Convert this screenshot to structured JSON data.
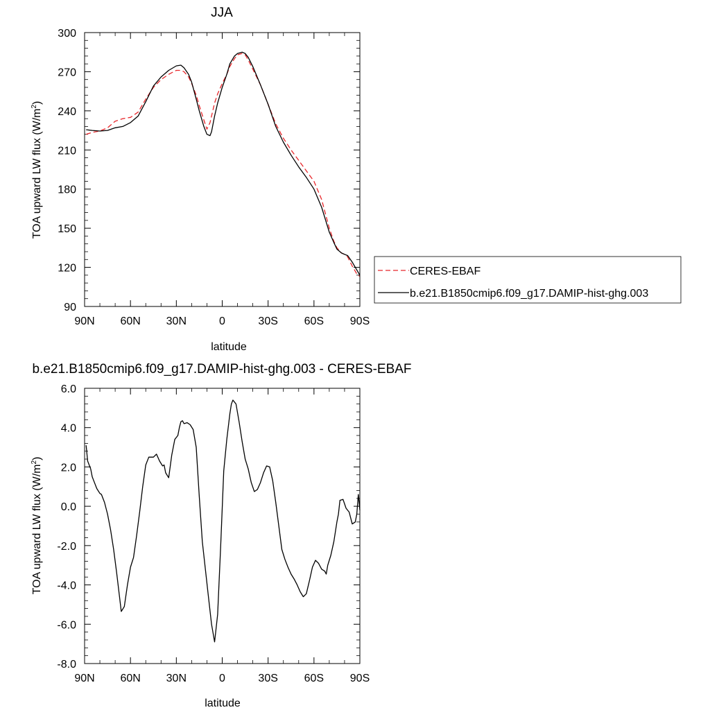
{
  "chart_data": [
    {
      "type": "line",
      "title": "JJA",
      "xlabel": "latitude",
      "ylabel": "TOA upward LW flux (W/m",
      "ylabel_sup": "2",
      "ylabel_close": ")",
      "xlim": [
        90,
        -90
      ],
      "ylim": [
        90,
        300
      ],
      "x_ticks": [
        {
          "value": 90,
          "label": "90N"
        },
        {
          "value": 60,
          "label": "60N"
        },
        {
          "value": 30,
          "label": "30N"
        },
        {
          "value": 0,
          "label": "0"
        },
        {
          "value": -30,
          "label": "30S"
        },
        {
          "value": -60,
          "label": "60S"
        },
        {
          "value": -90,
          "label": "90S"
        }
      ],
      "y_ticks": [
        {
          "value": 90,
          "label": "90"
        },
        {
          "value": 120,
          "label": "120"
        },
        {
          "value": 150,
          "label": "150"
        },
        {
          "value": 180,
          "label": "180"
        },
        {
          "value": 210,
          "label": "210"
        },
        {
          "value": 240,
          "label": "240"
        },
        {
          "value": 270,
          "label": "270"
        },
        {
          "value": 300,
          "label": "300"
        }
      ],
      "legend_position": "right",
      "series": [
        {
          "name": "CERES-EBAF",
          "color": "#e8262a",
          "dash": "dashed",
          "x": [
            89,
            85,
            80,
            75,
            70,
            65,
            60,
            55,
            50,
            45,
            40,
            35,
            30,
            27,
            25,
            22,
            20,
            17,
            15,
            12,
            10,
            8,
            7,
            5,
            3,
            0,
            -3,
            -5,
            -8,
            -10,
            -13,
            -15,
            -17,
            -20,
            -25,
            -30,
            -35,
            -40,
            -45,
            -50,
            -55,
            -60,
            -65,
            -70,
            -73,
            -75,
            -78,
            -80,
            -82,
            -85,
            -88,
            -90
          ],
          "y": [
            222,
            223.5,
            224.5,
            227,
            232,
            234,
            235,
            239,
            249,
            258,
            264,
            268,
            271,
            271,
            270,
            266,
            261,
            252,
            244,
            233,
            226,
            231,
            236,
            246,
            253,
            261,
            268,
            274,
            280,
            283,
            284,
            283,
            279,
            272,
            260,
            245,
            230,
            219,
            210,
            202,
            194,
            186,
            172,
            150,
            140,
            135,
            131,
            130,
            128,
            121,
            115,
            113
          ]
        },
        {
          "name": "b.e21.B1850cmip6.f09_g17.DAMIP-hist-ghg.003",
          "color": "#000000",
          "dash": "solid",
          "x": [
            89,
            85,
            80,
            75,
            70,
            65,
            60,
            55,
            50,
            45,
            40,
            35,
            30,
            27,
            25,
            22,
            20,
            17,
            15,
            12,
            10,
            8,
            7,
            5,
            3,
            0,
            -3,
            -5,
            -8,
            -10,
            -13,
            -15,
            -17,
            -20,
            -25,
            -30,
            -35,
            -40,
            -45,
            -50,
            -55,
            -60,
            -65,
            -70,
            -73,
            -75,
            -78,
            -80,
            -82,
            -85,
            -88,
            -90
          ],
          "y": [
            225.5,
            225,
            224.5,
            225,
            227,
            228,
            231,
            236,
            247,
            259,
            266,
            271,
            274.5,
            275,
            273,
            268,
            262,
            249,
            240,
            228,
            222,
            221,
            224,
            236,
            246,
            258,
            268,
            276,
            282,
            284,
            285,
            284,
            281,
            274,
            260,
            245,
            228,
            216,
            206,
            197,
            189,
            180,
            166,
            147,
            139,
            134,
            131,
            130,
            129,
            124,
            118,
            114
          ]
        }
      ]
    },
    {
      "type": "line",
      "title": "b.e21.B1850cmip6.f09_g17.DAMIP-hist-ghg.003 - CERES-EBAF",
      "xlabel": "latitude",
      "ylabel": "TOA upward LW flux (W/m",
      "ylabel_sup": "2",
      "ylabel_close": ")",
      "xlim": [
        90,
        -90
      ],
      "ylim": [
        -8,
        6
      ],
      "x_ticks": [
        {
          "value": 90,
          "label": "90N"
        },
        {
          "value": 60,
          "label": "60N"
        },
        {
          "value": 30,
          "label": "30N"
        },
        {
          "value": 0,
          "label": "0"
        },
        {
          "value": -30,
          "label": "30S"
        },
        {
          "value": -60,
          "label": "60S"
        },
        {
          "value": -90,
          "label": "90S"
        }
      ],
      "y_ticks": [
        {
          "value": -8,
          "label": "-8.0"
        },
        {
          "value": -6,
          "label": "-6.0"
        },
        {
          "value": -4,
          "label": "-4.0"
        },
        {
          "value": -2,
          "label": "-2.0"
        },
        {
          "value": 0,
          "label": "0.0"
        },
        {
          "value": 2,
          "label": "2.0"
        },
        {
          "value": 4,
          "label": "4.0"
        },
        {
          "value": 6,
          "label": "6.0"
        }
      ],
      "series": [
        {
          "color": "#000000",
          "dash": "solid",
          "x": [
            89,
            88,
            86,
            85,
            84,
            82,
            80,
            79,
            77,
            75,
            73,
            71,
            69,
            67,
            66,
            64,
            62,
            60,
            58,
            56,
            54,
            52,
            50,
            48,
            46,
            45,
            43,
            41,
            39,
            38,
            37,
            35,
            33,
            31,
            30,
            29,
            28,
            27,
            26,
            25,
            23,
            21,
            19,
            17,
            15,
            13,
            11,
            9,
            7,
            5,
            3,
            1,
            -1,
            -3,
            -5,
            -6,
            -7,
            -9,
            -11,
            -13,
            -15,
            -17,
            -19,
            -21,
            -23,
            -25,
            -27,
            -29,
            -31,
            -33,
            -35,
            -37,
            -39,
            -41,
            -43,
            -45,
            -47,
            -49,
            -51,
            -53,
            -55,
            -57,
            -59,
            -61,
            -63,
            -65,
            -67,
            -68,
            -69,
            -71,
            -73,
            -75,
            -76,
            -77,
            -79,
            -81,
            -83,
            -85,
            -87,
            -88,
            -89,
            -90
          ],
          "y": [
            3.1,
            2.3,
            1.9,
            1.5,
            1.3,
            0.9,
            0.65,
            0.6,
            0.2,
            -0.4,
            -1.2,
            -2.2,
            -3.4,
            -4.7,
            -5.35,
            -5.1,
            -4.0,
            -3.1,
            -2.6,
            -1.5,
            -0.3,
            1.0,
            2.1,
            2.5,
            2.5,
            2.5,
            2.65,
            2.3,
            2.05,
            2.1,
            1.7,
            1.45,
            2.6,
            3.4,
            3.5,
            3.6,
            4.0,
            4.3,
            4.35,
            4.2,
            4.25,
            4.15,
            3.9,
            3.0,
            0.5,
            -1.8,
            -3.2,
            -4.6,
            -6.0,
            -6.9,
            -5.5,
            -2.0,
            1.8,
            3.4,
            4.7,
            5.2,
            5.4,
            5.2,
            4.3,
            3.3,
            2.4,
            1.9,
            1.2,
            0.75,
            0.85,
            1.2,
            1.7,
            2.05,
            2.0,
            1.3,
            0.2,
            -1.0,
            -2.2,
            -2.7,
            -3.1,
            -3.45,
            -3.7,
            -4.0,
            -4.35,
            -4.6,
            -4.45,
            -3.8,
            -3.1,
            -2.75,
            -2.9,
            -3.2,
            -3.3,
            -3.45,
            -3.0,
            -2.5,
            -1.8,
            -0.8,
            -0.4,
            0.3,
            0.35,
            -0.1,
            -0.3,
            -0.9,
            -0.8,
            -0.4,
            0.6,
            -0.2
          ]
        }
      ]
    }
  ]
}
